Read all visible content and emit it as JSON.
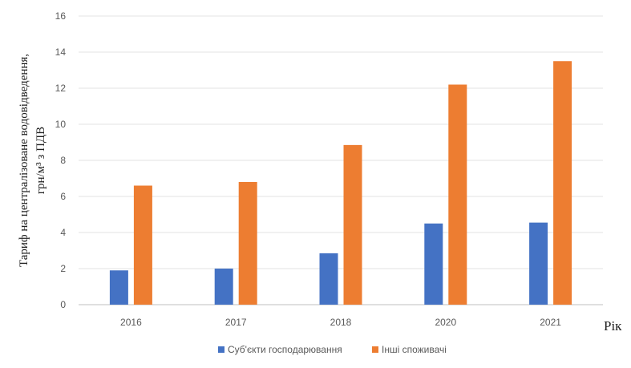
{
  "chart_data": {
    "type": "bar",
    "title": "",
    "ylabel_line1": "Тариф на централізоване водовідведення,",
    "ylabel_line2": "грн/м³ з ПДВ",
    "xlabel": "Рік",
    "categories": [
      "2016",
      "2017",
      "2018",
      "2020",
      "2021"
    ],
    "ylim": [
      0,
      16
    ],
    "yticks": [
      0,
      2,
      4,
      6,
      8,
      10,
      12,
      14,
      16
    ],
    "grid": true,
    "legend_position": "bottom",
    "series": [
      {
        "name": "Суб'єкти господарювання",
        "color": "#4472c4",
        "values": [
          1.9,
          2.0,
          2.85,
          4.5,
          4.55
        ]
      },
      {
        "name": "Інші споживачі",
        "color": "#ed7d31",
        "values": [
          6.6,
          6.8,
          8.85,
          12.2,
          13.5
        ]
      }
    ]
  }
}
